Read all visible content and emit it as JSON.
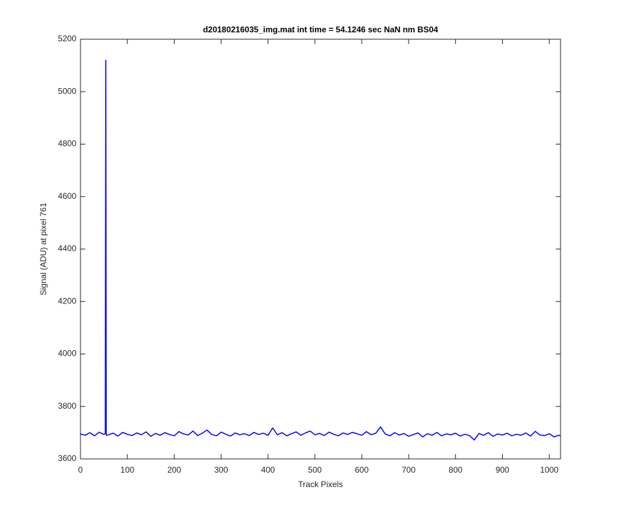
{
  "chart_data": {
    "type": "line",
    "title": "d20180216035_img.mat int time = 54.1246 sec  NaN nm BS04",
    "x_label": "Track Pixels",
    "y_label": "Signal (ADU) at pixel 761",
    "x": [
      0,
      10,
      20,
      30,
      40,
      50,
      53,
      54,
      55,
      60,
      70,
      80,
      90,
      100,
      110,
      120,
      130,
      140,
      150,
      160,
      170,
      180,
      190,
      200,
      210,
      220,
      230,
      240,
      250,
      260,
      270,
      280,
      290,
      300,
      310,
      320,
      330,
      340,
      350,
      360,
      370,
      380,
      390,
      400,
      410,
      420,
      430,
      440,
      450,
      460,
      470,
      480,
      490,
      500,
      510,
      520,
      530,
      540,
      550,
      560,
      570,
      580,
      590,
      600,
      610,
      620,
      630,
      640,
      650,
      660,
      670,
      680,
      690,
      700,
      710,
      720,
      730,
      740,
      750,
      760,
      770,
      780,
      790,
      800,
      810,
      820,
      830,
      840,
      850,
      860,
      870,
      880,
      890,
      900,
      910,
      920,
      930,
      940,
      950,
      960,
      970,
      980,
      990,
      1000,
      1010,
      1020,
      1024
    ],
    "series": [
      {
        "color": "#0000ff",
        "values": [
          3695,
          3690,
          3700,
          3688,
          3702,
          3693,
          3697,
          5120,
          3690,
          3692,
          3698,
          3687,
          3701,
          3694,
          3689,
          3699,
          3692,
          3703,
          3686,
          3697,
          3690,
          3700,
          3693,
          3688,
          3704,
          3695,
          3691,
          3706,
          3689,
          3698,
          3710,
          3693,
          3688,
          3702,
          3694,
          3687,
          3699,
          3692,
          3696,
          3689,
          3701,
          3693,
          3698,
          3690,
          3718,
          3692,
          3700,
          3688,
          3696,
          3703,
          3690,
          3699,
          3706,
          3692,
          3697,
          3689,
          3702,
          3694,
          3688,
          3699,
          3693,
          3701,
          3696,
          3690,
          3704,
          3692,
          3698,
          3722,
          3695,
          3688,
          3700,
          3691,
          3697,
          3686,
          3693,
          3699,
          3684,
          3696,
          3690,
          3701,
          3688,
          3695,
          3692,
          3698,
          3687,
          3694,
          3689,
          3672,
          3697,
          3690,
          3700,
          3686,
          3695,
          3691,
          3698,
          3688,
          3694,
          3690,
          3699,
          3687,
          3705,
          3691,
          3689,
          3696,
          3684,
          3690,
          3688
        ]
      }
    ],
    "xlim": [
      0,
      1024
    ],
    "xticks": [
      0,
      100,
      200,
      300,
      400,
      500,
      600,
      700,
      800,
      900,
      1000
    ],
    "ylim": [
      3600,
      5200
    ],
    "yticks": [
      3600,
      3800,
      4000,
      4200,
      4400,
      4600,
      4800,
      5000,
      5200
    ],
    "grid": false
  }
}
